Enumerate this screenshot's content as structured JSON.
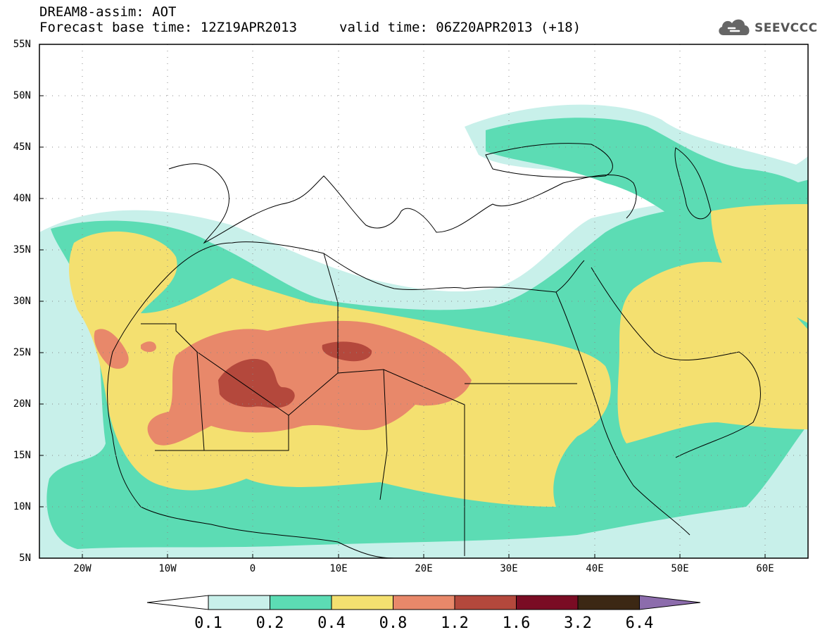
{
  "header": {
    "line1": "DREAM8-assim: AOT",
    "base_time": "Forecast base time: 12Z19APR2013",
    "valid_time": "valid time: 06Z20APR2013 (+18)",
    "logo_text": "SEEVCCC"
  },
  "map": {
    "variable": "AOT",
    "lat_labels": [
      "55N",
      "50N",
      "45N",
      "40N",
      "35N",
      "30N",
      "25N",
      "20N",
      "15N",
      "10N",
      "5N"
    ],
    "lon_labels": [
      "20W",
      "10W",
      "0",
      "10E",
      "20E",
      "30E",
      "40E",
      "50E",
      "60E"
    ],
    "lat_range": [
      5,
      55
    ],
    "lon_range": [
      -25,
      65
    ]
  },
  "colorbar": {
    "levels": [
      "0.1",
      "0.2",
      "0.4",
      "0.8",
      "1.2",
      "1.6",
      "3.2",
      "6.4"
    ],
    "colors": [
      "#c8f0ea",
      "#5cdcb4",
      "#f4e070",
      "#e8886a",
      "#b4483c",
      "#7a0c24",
      "#3c2814",
      "#8c6cac"
    ],
    "under_color": "#ffffff"
  }
}
